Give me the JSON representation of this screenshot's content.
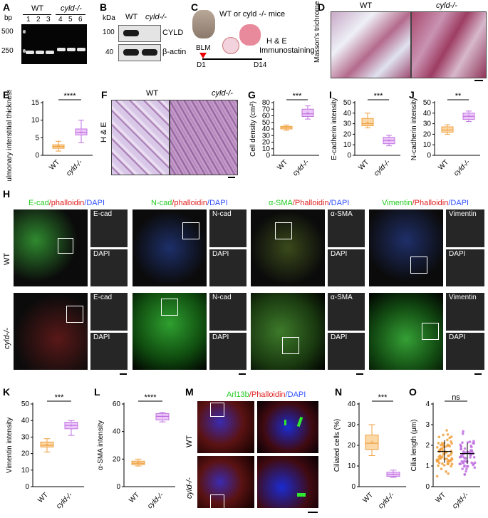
{
  "panels": {
    "A": "A",
    "B": "B",
    "C": "C",
    "D": "D",
    "E": "E",
    "F": "F",
    "G": "G",
    "H": "H",
    "I": "I",
    "J": "J",
    "K": "K",
    "L": "L",
    "M": "M",
    "N": "N",
    "O": "O"
  },
  "panel_A": {
    "bp_label": "bp",
    "groups": [
      "WT",
      "cyld-/-"
    ],
    "lanes": [
      "1",
      "2",
      "3",
      "4",
      "5",
      "6"
    ],
    "markers": [
      "500",
      "250"
    ]
  },
  "panel_B": {
    "kda_label": "kDa",
    "groups": [
      "WT",
      "cyld-/-"
    ],
    "markers": [
      "100",
      "40"
    ],
    "bands": [
      "CYLD",
      "β-actin"
    ]
  },
  "panel_C": {
    "mice": "WT or cyld -/- mice",
    "blm": "BLM",
    "d1": "D1",
    "d14": "D14",
    "readout1": "H & E",
    "readout2": "Immunostaining"
  },
  "panel_D": {
    "groups": [
      "WT",
      "cyld-/-"
    ],
    "ylabel": "Masson's trichrome"
  },
  "panel_F": {
    "groups": [
      "WT",
      "cyld-/-"
    ],
    "ylabel": "H & E"
  },
  "panel_H": {
    "rows": [
      "WT",
      "cyld-/-"
    ],
    "headers": [
      {
        "a": "E-cad",
        "b": "/phalloidin",
        "c": "/DAPI"
      },
      {
        "a": "N-cad",
        "b": "/phalloidin",
        "c": "/DAPI"
      },
      {
        "a": "α-SMA",
        "b": "/Phalloidin",
        "c": "/DAPI"
      },
      {
        "a": "Vimentin",
        "b": "/Phalloidin",
        "c": "/DAPI"
      }
    ],
    "insets": [
      "E-cad",
      "N-cad",
      "α-SMA",
      "Vimentin"
    ],
    "dapi": "DAPI"
  },
  "panel_M": {
    "header_a": "Arl13b",
    "header_b": "/Phalloidin",
    "header_c": "/DAPI",
    "rows": [
      "WT",
      "cyld-/-"
    ]
  },
  "colors": {
    "wt": "#f0a040",
    "ko": "#c070e0",
    "green": "#22cc22",
    "red": "#e02020",
    "blue": "#3050ff"
  },
  "chart_data": [
    {
      "id": "E",
      "type": "box",
      "ylabel": "Pulmonary interstitial thickness (μm)",
      "categories": [
        "WT",
        "cyld-/-"
      ],
      "ylim": [
        0,
        15
      ],
      "yticks": [
        0,
        5,
        10,
        15
      ],
      "significance": "****",
      "boxes": [
        {
          "min": 1.2,
          "q1": 2.0,
          "median": 2.5,
          "q3": 3.0,
          "max": 4.0,
          "mean": 2.6
        },
        {
          "min": 3.6,
          "q1": 5.8,
          "median": 6.5,
          "q3": 7.5,
          "max": 10.0,
          "mean": 6.6
        }
      ]
    },
    {
      "id": "G",
      "type": "box",
      "ylabel": "Cell density (cm²)",
      "categories": [
        "WT",
        "cyld-/-"
      ],
      "ylim": [
        0,
        80
      ],
      "yticks": [
        0,
        10,
        20,
        30,
        40,
        50,
        60,
        70,
        80
      ],
      "significance": "***",
      "boxes": [
        {
          "min": 38,
          "q1": 40,
          "median": 42,
          "q3": 44,
          "max": 46,
          "mean": 42
        },
        {
          "min": 55,
          "q1": 59,
          "median": 63,
          "q3": 70,
          "max": 75,
          "mean": 64
        }
      ]
    },
    {
      "id": "I",
      "type": "box",
      "ylabel": "E-cadherin intensity",
      "categories": [
        "WT",
        "cyld-/-"
      ],
      "ylim": [
        0,
        50
      ],
      "yticks": [
        0,
        10,
        20,
        30,
        40,
        50
      ],
      "significance": "***",
      "boxes": [
        {
          "min": 26,
          "q1": 28,
          "median": 30,
          "q3": 35,
          "max": 40,
          "mean": 31
        },
        {
          "min": 9,
          "q1": 11,
          "median": 14,
          "q3": 17,
          "max": 19,
          "mean": 14
        }
      ]
    },
    {
      "id": "J",
      "type": "box",
      "ylabel": "N-cadherin intensity",
      "categories": [
        "WT",
        "cyld-/-"
      ],
      "ylim": [
        0,
        50
      ],
      "yticks": [
        0,
        10,
        20,
        30,
        40,
        50
      ],
      "significance": "**",
      "boxes": [
        {
          "min": 20,
          "q1": 22,
          "median": 24,
          "q3": 27,
          "max": 29,
          "mean": 24
        },
        {
          "min": 32,
          "q1": 34,
          "median": 37,
          "q3": 40,
          "max": 42,
          "mean": 37
        }
      ]
    },
    {
      "id": "K",
      "type": "box",
      "ylabel": "Vimentin intensity",
      "categories": [
        "WT",
        "cyld-/-"
      ],
      "ylim": [
        0,
        50
      ],
      "yticks": [
        0,
        10,
        20,
        30,
        40,
        50
      ],
      "significance": "***",
      "boxes": [
        {
          "min": 21,
          "q1": 24,
          "median": 25,
          "q3": 27,
          "max": 29,
          "mean": 25.5
        },
        {
          "min": 31,
          "q1": 35,
          "median": 37,
          "q3": 39,
          "max": 40,
          "mean": 37
        }
      ]
    },
    {
      "id": "L",
      "type": "box",
      "ylabel": "α-SMA intensity",
      "categories": [
        "WT",
        "cyld-/-"
      ],
      "ylim": [
        0,
        60
      ],
      "yticks": [
        0,
        20,
        40,
        60
      ],
      "significance": "****",
      "boxes": [
        {
          "min": 15,
          "q1": 16,
          "median": 17,
          "q3": 18.5,
          "max": 20,
          "mean": 17.2
        },
        {
          "min": 47,
          "q1": 48.5,
          "median": 51,
          "q3": 53,
          "max": 54,
          "mean": 51
        }
      ]
    },
    {
      "id": "N",
      "type": "box",
      "ylabel": "Ciliated cells (%)",
      "categories": [
        "WT",
        "cyld-/-"
      ],
      "ylim": [
        0,
        40
      ],
      "yticks": [
        0,
        10,
        20,
        30,
        40
      ],
      "significance": "***",
      "boxes": [
        {
          "min": 15,
          "q1": 18,
          "median": 21,
          "q3": 25,
          "max": 30,
          "mean": 21.5
        },
        {
          "min": 4.5,
          "q1": 5,
          "median": 6,
          "q3": 7,
          "max": 8,
          "mean": 6
        }
      ]
    },
    {
      "id": "O",
      "type": "scatter",
      "ylabel": "Cilia length (μm)",
      "categories": [
        "WT",
        "cyld-/-"
      ],
      "ylim": [
        0,
        4
      ],
      "yticks": [
        0,
        1,
        2,
        3,
        4
      ],
      "significance": "ns",
      "groups": [
        {
          "mean": 1.7,
          "sd": 0.55,
          "n": 70
        },
        {
          "mean": 1.6,
          "sd": 0.5,
          "n": 60
        }
      ]
    }
  ]
}
